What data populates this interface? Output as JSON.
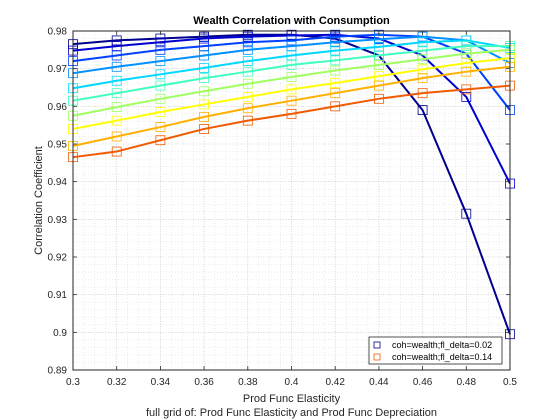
{
  "chart_data": {
    "type": "line",
    "title": "Wealth Correlation with Consumption",
    "xlabel": "Prod Func Elasticity",
    "ylabel": "Correlation Coefficient",
    "subtitle": "full grid of: Prod Func Elasticity and Prod Func Depreciation",
    "xlim": [
      0.3,
      0.5
    ],
    "ylim": [
      0.89,
      0.98
    ],
    "x_ticks": [
      0.3,
      0.32,
      0.34,
      0.36,
      0.38,
      0.4,
      0.42,
      0.44,
      0.46,
      0.48,
      0.5
    ],
    "y_ticks": [
      0.89,
      0.9,
      0.91,
      0.92,
      0.93,
      0.94,
      0.95,
      0.96,
      0.97,
      0.98
    ],
    "grid": "dotted major and minor",
    "marker": "square",
    "legend_position": "bottom-right",
    "x": [
      0.3,
      0.32,
      0.34,
      0.36,
      0.38,
      0.4,
      0.42,
      0.44,
      0.46,
      0.48,
      0.5
    ],
    "series": [
      {
        "name": "coh=wealth;fl_delta=0.02",
        "color": "#00008f",
        "values": [
          0.9765,
          0.9775,
          0.978,
          0.9785,
          0.979,
          0.979,
          0.978,
          0.9735,
          0.959,
          0.9315,
          0.8995
        ]
      },
      {
        "color": "#0000d0",
        "values": [
          0.9748,
          0.976,
          0.977,
          0.978,
          0.9785,
          0.9788,
          0.979,
          0.978,
          0.9735,
          0.9625,
          0.9395
        ]
      },
      {
        "color": "#0040ff",
        "values": [
          0.972,
          0.9735,
          0.975,
          0.976,
          0.977,
          0.9775,
          0.9785,
          0.979,
          0.9785,
          0.974,
          0.959
        ]
      },
      {
        "color": "#0090ff",
        "values": [
          0.9688,
          0.9705,
          0.972,
          0.9735,
          0.975,
          0.976,
          0.977,
          0.9778,
          0.9785,
          0.9775,
          0.9715
        ]
      },
      {
        "color": "#00d8ff",
        "values": [
          0.9648,
          0.9668,
          0.9685,
          0.9702,
          0.972,
          0.9735,
          0.9748,
          0.9758,
          0.977,
          0.9775,
          0.9755
        ]
      },
      {
        "color": "#40ffbf",
        "values": [
          0.9615,
          0.9635,
          0.9655,
          0.9675,
          0.9692,
          0.971,
          0.9722,
          0.9735,
          0.9748,
          0.976,
          0.976
        ]
      },
      {
        "color": "#a0ff60",
        "values": [
          0.9575,
          0.9598,
          0.962,
          0.964,
          0.966,
          0.9678,
          0.9695,
          0.971,
          0.9725,
          0.974,
          0.975
        ]
      },
      {
        "color": "#ffff00",
        "values": [
          0.954,
          0.9562,
          0.9585,
          0.9605,
          0.9625,
          0.9645,
          0.9662,
          0.968,
          0.9698,
          0.9715,
          0.9728
        ]
      },
      {
        "color": "#ffb000",
        "values": [
          0.9495,
          0.952,
          0.9545,
          0.9572,
          0.9595,
          0.9615,
          0.9635,
          0.9655,
          0.9675,
          0.9692,
          0.9705
        ]
      },
      {
        "name": "coh=wealth;fl_delta=0.14",
        "color": "#f05a00",
        "values": [
          0.9465,
          0.948,
          0.951,
          0.954,
          0.9562,
          0.958,
          0.96,
          0.962,
          0.9635,
          0.9645,
          0.9655
        ]
      }
    ]
  }
}
